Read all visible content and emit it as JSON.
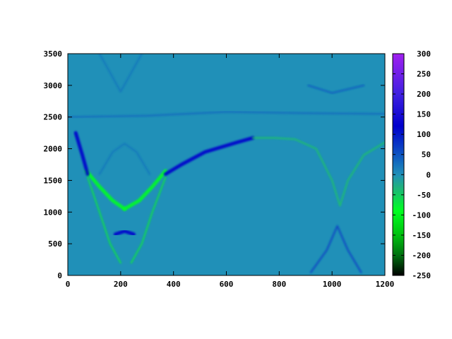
{
  "chart_data": {
    "type": "heatmap",
    "title": "",
    "xlabel": "",
    "ylabel": "",
    "xlim": [
      0,
      1200
    ],
    "ylim": [
      0,
      3500
    ],
    "x_ticks": [
      "0",
      "200",
      "400",
      "600",
      "800",
      "1000",
      "1200"
    ],
    "y_ticks": [
      "0",
      "500",
      "1000",
      "1500",
      "2000",
      "2500",
      "3000",
      "3500"
    ],
    "x_tick_values": [
      0,
      200,
      400,
      600,
      800,
      1000,
      1200
    ],
    "y_tick_values": [
      0,
      500,
      1000,
      1500,
      2000,
      2500,
      3000,
      3500
    ],
    "background_value": 0,
    "colorbar": {
      "range": [
        -250,
        300
      ],
      "tick_values": [
        300,
        250,
        200,
        150,
        100,
        50,
        0,
        -50,
        -100,
        -150,
        -200,
        -250
      ],
      "tick_labels": [
        "300",
        "250",
        "200",
        "150",
        "100",
        "50",
        "0",
        "-50",
        "-100",
        "-150",
        "-200",
        "-250"
      ],
      "colors": [
        {
          "value": 300,
          "color": "#a020f0"
        },
        {
          "value": 200,
          "color": "#4020e0"
        },
        {
          "value": 120,
          "color": "#0000cc"
        },
        {
          "value": 40,
          "color": "#1060c0"
        },
        {
          "value": 0,
          "color": "#2090b8"
        },
        {
          "value": -30,
          "color": "#20b080"
        },
        {
          "value": -90,
          "color": "#00ff20"
        },
        {
          "value": -150,
          "color": "#00c010"
        },
        {
          "value": -200,
          "color": "#007010"
        },
        {
          "value": -250,
          "color": "#000000"
        }
      ]
    },
    "features": [
      {
        "name": "left-ridge-upper",
        "value": -90,
        "points": [
          [
            70,
            1650
          ],
          [
            120,
            1400
          ],
          [
            170,
            1180
          ],
          [
            215,
            1050
          ]
        ]
      },
      {
        "name": "right-ridge-upper",
        "value": -90,
        "points": [
          [
            215,
            1050
          ],
          [
            270,
            1180
          ],
          [
            320,
            1400
          ],
          [
            370,
            1650
          ]
        ]
      },
      {
        "name": "left-ridge-lower",
        "value": -60,
        "points": [
          [
            75,
            1550
          ],
          [
            120,
            1000
          ],
          [
            160,
            500
          ],
          [
            200,
            200
          ]
        ]
      },
      {
        "name": "right-ridge-lower",
        "value": -60,
        "points": [
          [
            370,
            1550
          ],
          [
            320,
            1000
          ],
          [
            280,
            500
          ],
          [
            240,
            200
          ]
        ]
      },
      {
        "name": "left-blue-branch",
        "value": 120,
        "points": [
          [
            30,
            2250
          ],
          [
            55,
            1900
          ],
          [
            75,
            1600
          ]
        ]
      },
      {
        "name": "right-blue-branch",
        "value": 120,
        "points": [
          [
            370,
            1600
          ],
          [
            430,
            1750
          ],
          [
            520,
            1950
          ],
          [
            640,
            2100
          ],
          [
            700,
            2170
          ]
        ]
      },
      {
        "name": "upper-arch",
        "value": -40,
        "points": [
          [
            700,
            2170
          ],
          [
            780,
            2170
          ],
          [
            860,
            2150
          ],
          [
            940,
            2000
          ],
          [
            1000,
            1500
          ],
          [
            1030,
            1100
          ],
          [
            1060,
            1500
          ],
          [
            1120,
            1900
          ],
          [
            1200,
            2100
          ]
        ]
      },
      {
        "name": "lower-arch",
        "value": 60,
        "points": [
          [
            920,
            50
          ],
          [
            980,
            400
          ],
          [
            1020,
            780
          ],
          [
            1060,
            400
          ],
          [
            1110,
            50
          ]
        ]
      },
      {
        "name": "horizontal-streak",
        "value": 30,
        "points": [
          [
            0,
            2500
          ],
          [
            300,
            2520
          ],
          [
            600,
            2580
          ],
          [
            900,
            2560
          ],
          [
            1200,
            2550
          ]
        ]
      },
      {
        "name": "top-arc-left",
        "value": 20,
        "points": [
          [
            120,
            3500
          ],
          [
            160,
            3200
          ],
          [
            200,
            2900
          ],
          [
            240,
            3200
          ],
          [
            280,
            3500
          ]
        ]
      },
      {
        "name": "inner-blob",
        "value": 120,
        "points": [
          [
            180,
            650
          ],
          [
            215,
            700
          ],
          [
            250,
            650
          ]
        ]
      },
      {
        "name": "upper-faint-arch",
        "value": 20,
        "points": [
          [
            120,
            1600
          ],
          [
            170,
            1950
          ],
          [
            215,
            2080
          ],
          [
            260,
            1950
          ],
          [
            310,
            1600
          ]
        ]
      },
      {
        "name": "top-right-spot",
        "value": 40,
        "points": [
          [
            910,
            3000
          ],
          [
            1000,
            2880
          ],
          [
            1120,
            3000
          ]
        ]
      }
    ]
  }
}
